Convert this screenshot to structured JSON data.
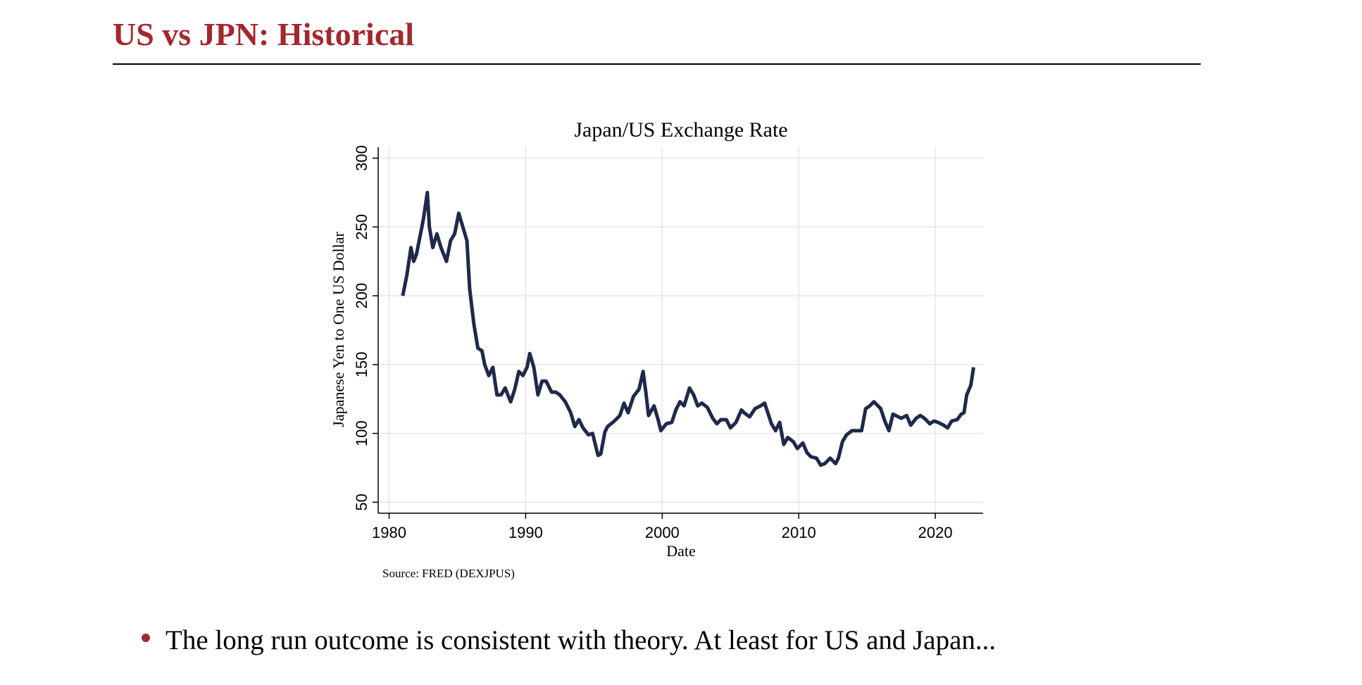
{
  "header": {
    "title": "US vs JPN: Historical"
  },
  "chart_data": {
    "type": "line",
    "title": "Japan/US Exchange Rate",
    "x_label": "Date",
    "y_label": "Japanese Yen to One US Dollar",
    "source": "Source: FRED (DEXJPUS)",
    "xlim": [
      1979.2,
      2023.5
    ],
    "xticks": [
      1980,
      1990,
      2000,
      2010,
      2020
    ],
    "ylim": [
      42,
      308
    ],
    "yticks": [
      50,
      100,
      150,
      200,
      250,
      300
    ],
    "grid": true,
    "x": [
      1981.0,
      1981.3,
      1981.6,
      1981.8,
      1982.0,
      1982.3,
      1982.5,
      1982.8,
      1982.95,
      1983.2,
      1983.5,
      1983.8,
      1984.2,
      1984.5,
      1984.8,
      1985.1,
      1985.4,
      1985.7,
      1985.9,
      1986.2,
      1986.5,
      1986.8,
      1987.0,
      1987.3,
      1987.6,
      1987.9,
      1988.2,
      1988.5,
      1988.9,
      1989.2,
      1989.5,
      1989.8,
      1990.1,
      1990.3,
      1990.6,
      1990.9,
      1991.2,
      1991.5,
      1991.9,
      1992.2,
      1992.5,
      1992.9,
      1993.3,
      1993.6,
      1993.9,
      1994.2,
      1994.6,
      1994.9,
      1995.3,
      1995.5,
      1995.8,
      1996.0,
      1996.5,
      1996.9,
      1997.2,
      1997.5,
      1997.9,
      1998.3,
      1998.6,
      1998.8,
      1999.0,
      1999.4,
      1999.7,
      1999.9,
      2000.3,
      2000.7,
      2001.0,
      2001.3,
      2001.6,
      2002.0,
      2002.3,
      2002.6,
      2002.9,
      2003.3,
      2003.7,
      2004.0,
      2004.3,
      2004.7,
      2005.0,
      2005.4,
      2005.8,
      2006.0,
      2006.4,
      2006.8,
      2007.2,
      2007.5,
      2007.7,
      2008.0,
      2008.3,
      2008.6,
      2008.9,
      2009.2,
      2009.6,
      2009.9,
      2010.3,
      2010.6,
      2010.9,
      2011.3,
      2011.6,
      2011.9,
      2012.3,
      2012.7,
      2012.9,
      2013.2,
      2013.5,
      2013.9,
      2014.3,
      2014.6,
      2014.9,
      2015.2,
      2015.5,
      2015.8,
      2016.0,
      2016.3,
      2016.6,
      2016.9,
      2017.1,
      2017.5,
      2017.9,
      2018.2,
      2018.6,
      2018.9,
      2019.2,
      2019.6,
      2019.9,
      2020.2,
      2020.6,
      2020.9,
      2021.2,
      2021.6,
      2021.9,
      2022.1,
      2022.3,
      2022.6,
      2022.8
    ],
    "series": [
      {
        "name": "DEXJPUS",
        "color": "#1f2a4a",
        "values": [
          200,
          215,
          235,
          225,
          230,
          245,
          255,
          275,
          250,
          235,
          245,
          235,
          225,
          240,
          245,
          260,
          250,
          240,
          205,
          180,
          162,
          160,
          150,
          142,
          148,
          128,
          128,
          133,
          123,
          132,
          145,
          142,
          148,
          158,
          148,
          128,
          138,
          138,
          130,
          130,
          128,
          123,
          115,
          105,
          110,
          104,
          99,
          100,
          84,
          85,
          101,
          105,
          109,
          113,
          122,
          115,
          127,
          132,
          145,
          130,
          113,
          120,
          110,
          102,
          107,
          108,
          117,
          123,
          120,
          133,
          128,
          120,
          122,
          119,
          111,
          107,
          110,
          110,
          104,
          108,
          117,
          115,
          112,
          118,
          120,
          122,
          116,
          107,
          102,
          108,
          92,
          97,
          94,
          89,
          93,
          86,
          83,
          82,
          77,
          78,
          82,
          78,
          82,
          94,
          99,
          102,
          102,
          102,
          118,
          120,
          123,
          120,
          118,
          109,
          102,
          114,
          113,
          111,
          113,
          106,
          111,
          113,
          111,
          107,
          109,
          108,
          106,
          104,
          109,
          110,
          114,
          115,
          128,
          135,
          148
        ]
      }
    ]
  },
  "bullets": [
    "The long run outcome is consistent with theory. At least for US and Japan..."
  ]
}
